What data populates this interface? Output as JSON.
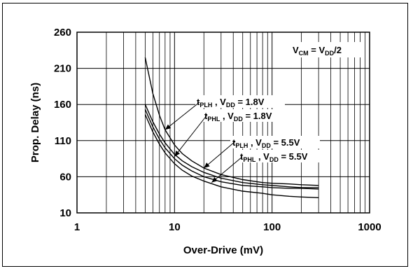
{
  "chart_data": {
    "type": "line",
    "x_scale": "log",
    "xlabel": "Over-Drive (mV)",
    "ylabel": "Prop. Delay (ns)",
    "xlim": [
      1,
      1000
    ],
    "ylim": [
      10,
      260
    ],
    "x_ticks": [
      "1",
      "10",
      "100",
      "1000"
    ],
    "y_ticks": [
      "10",
      "60",
      "110",
      "160",
      "210",
      "260"
    ],
    "grid": true,
    "note": {
      "main": "V",
      "sub1": "CM",
      "mid": " = V",
      "sub2": "DD",
      "tail": "/2"
    },
    "series": [
      {
        "name": "tPLH , VDD = 1.8V",
        "label": {
          "t": "t",
          "tsub": "PLH",
          "sep": " , V",
          "vsub": "DD",
          "val": " = 1.8V"
        },
        "x": [
          5,
          6,
          7,
          8,
          10,
          12,
          15,
          20,
          30,
          50,
          80,
          100,
          150,
          200,
          300
        ],
        "y": [
          225,
          175,
          145,
          125,
          104,
          92,
          82,
          72,
          63,
          56,
          52,
          51,
          50,
          49,
          48
        ]
      },
      {
        "name": "tPHL , VDD = 1.8V",
        "label": {
          "t": "t",
          "tsub": "PHL",
          "sep": " , V",
          "vsub": "DD",
          "val": " = 1.8V"
        },
        "x": [
          5,
          6,
          7,
          8,
          10,
          12,
          15,
          20,
          30,
          50,
          80,
          100,
          150,
          200,
          300
        ],
        "y": [
          160,
          136,
          119,
          107,
          91,
          82,
          74,
          66,
          58,
          52,
          49,
          48,
          46,
          45,
          45
        ]
      },
      {
        "name": "tPLH , VDD = 5.5V",
        "label": {
          "t": "t",
          "tsub": "PLH",
          "sep": " , V",
          "vsub": "DD",
          "val": " = 5.5V"
        },
        "x": [
          5,
          6,
          7,
          8,
          10,
          12,
          15,
          20,
          30,
          50,
          80,
          100,
          150,
          200,
          300
        ],
        "y": [
          153,
          129,
          112,
          100,
          85,
          76,
          68,
          60,
          53,
          48,
          46,
          45,
          44,
          44,
          43
        ]
      },
      {
        "name": "tPHL , VDD = 5.5V",
        "label": {
          "t": "t",
          "tsub": "PHL",
          "sep": " , V",
          "vsub": "DD",
          "val": " = 5.5V"
        },
        "x": [
          5,
          6,
          7,
          8,
          10,
          12,
          15,
          20,
          30,
          50,
          80,
          100,
          150,
          200,
          300
        ],
        "y": [
          146,
          122,
          105,
          93,
          78,
          69,
          61,
          54,
          46,
          40,
          37,
          35,
          33,
          32,
          31
        ]
      }
    ]
  }
}
